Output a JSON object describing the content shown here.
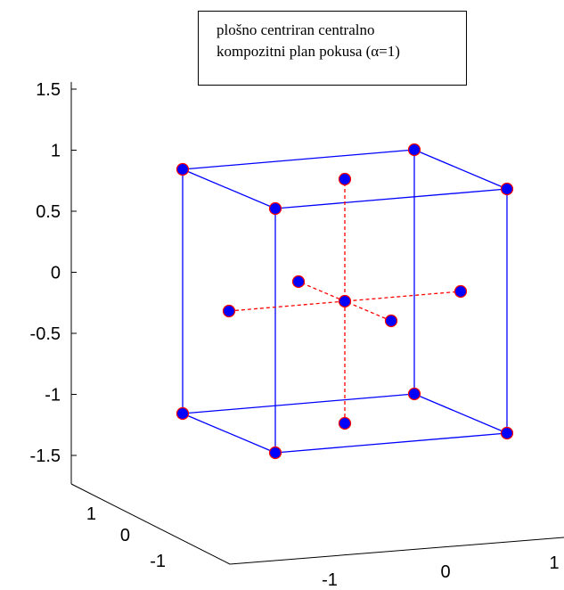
{
  "legend": {
    "line1": "plošno centriran centralno",
    "line2": "kompozitni plan pokusa (α=1)"
  },
  "chart_data": {
    "type": "scatter",
    "dimensions": 3,
    "axes": {
      "x": {
        "ticks": [
          "-1",
          "0",
          "1"
        ],
        "ticks_values": [
          -1,
          0,
          1
        ]
      },
      "y": {
        "ticks": [
          "-1",
          "0",
          "1"
        ],
        "ticks_values": [
          -1,
          0,
          1
        ]
      },
      "z": {
        "ticks": [
          "-1.5",
          "-1",
          "-0.5",
          "0",
          "0.5",
          "1",
          "1.5"
        ],
        "ticks_values": [
          -1.5,
          -1,
          -0.5,
          0,
          0.5,
          1,
          1.5
        ]
      }
    },
    "colors": {
      "marker_fill": "#0000ff",
      "marker_edge": "#ff0000",
      "cube_edges": "#0000ff",
      "axial_lines": "#ff0000"
    },
    "points": {
      "corners": [
        [
          -1,
          -1,
          -1
        ],
        [
          1,
          -1,
          -1
        ],
        [
          -1,
          1,
          -1
        ],
        [
          1,
          1,
          -1
        ],
        [
          -1,
          -1,
          1
        ],
        [
          1,
          -1,
          1
        ],
        [
          -1,
          1,
          1
        ],
        [
          1,
          1,
          1
        ]
      ],
      "axial": [
        [
          -1,
          0,
          0
        ],
        [
          1,
          0,
          0
        ],
        [
          0,
          -1,
          0
        ],
        [
          0,
          1,
          0
        ],
        [
          0,
          0,
          -1
        ],
        [
          0,
          0,
          1
        ]
      ],
      "center": [
        [
          0,
          0,
          0
        ]
      ]
    },
    "cube_edges": [
      [
        [
          -1,
          -1,
          -1
        ],
        [
          1,
          -1,
          -1
        ]
      ],
      [
        [
          -1,
          1,
          -1
        ],
        [
          1,
          1,
          -1
        ]
      ],
      [
        [
          -1,
          -1,
          -1
        ],
        [
          -1,
          1,
          -1
        ]
      ],
      [
        [
          1,
          -1,
          -1
        ],
        [
          1,
          1,
          -1
        ]
      ],
      [
        [
          -1,
          -1,
          1
        ],
        [
          1,
          -1,
          1
        ]
      ],
      [
        [
          -1,
          1,
          1
        ],
        [
          1,
          1,
          1
        ]
      ],
      [
        [
          -1,
          -1,
          1
        ],
        [
          -1,
          1,
          1
        ]
      ],
      [
        [
          1,
          -1,
          1
        ],
        [
          1,
          1,
          1
        ]
      ],
      [
        [
          -1,
          -1,
          -1
        ],
        [
          -1,
          -1,
          1
        ]
      ],
      [
        [
          1,
          -1,
          -1
        ],
        [
          1,
          -1,
          1
        ]
      ],
      [
        [
          -1,
          1,
          -1
        ],
        [
          -1,
          1,
          1
        ]
      ],
      [
        [
          1,
          1,
          -1
        ],
        [
          1,
          1,
          1
        ]
      ]
    ],
    "axial_lines": [
      [
        [
          -1,
          0,
          0
        ],
        [
          1,
          0,
          0
        ]
      ],
      [
        [
          0,
          -1,
          0
        ],
        [
          0,
          1,
          0
        ]
      ],
      [
        [
          0,
          0,
          -1
        ],
        [
          0,
          0,
          1
        ]
      ]
    ]
  }
}
